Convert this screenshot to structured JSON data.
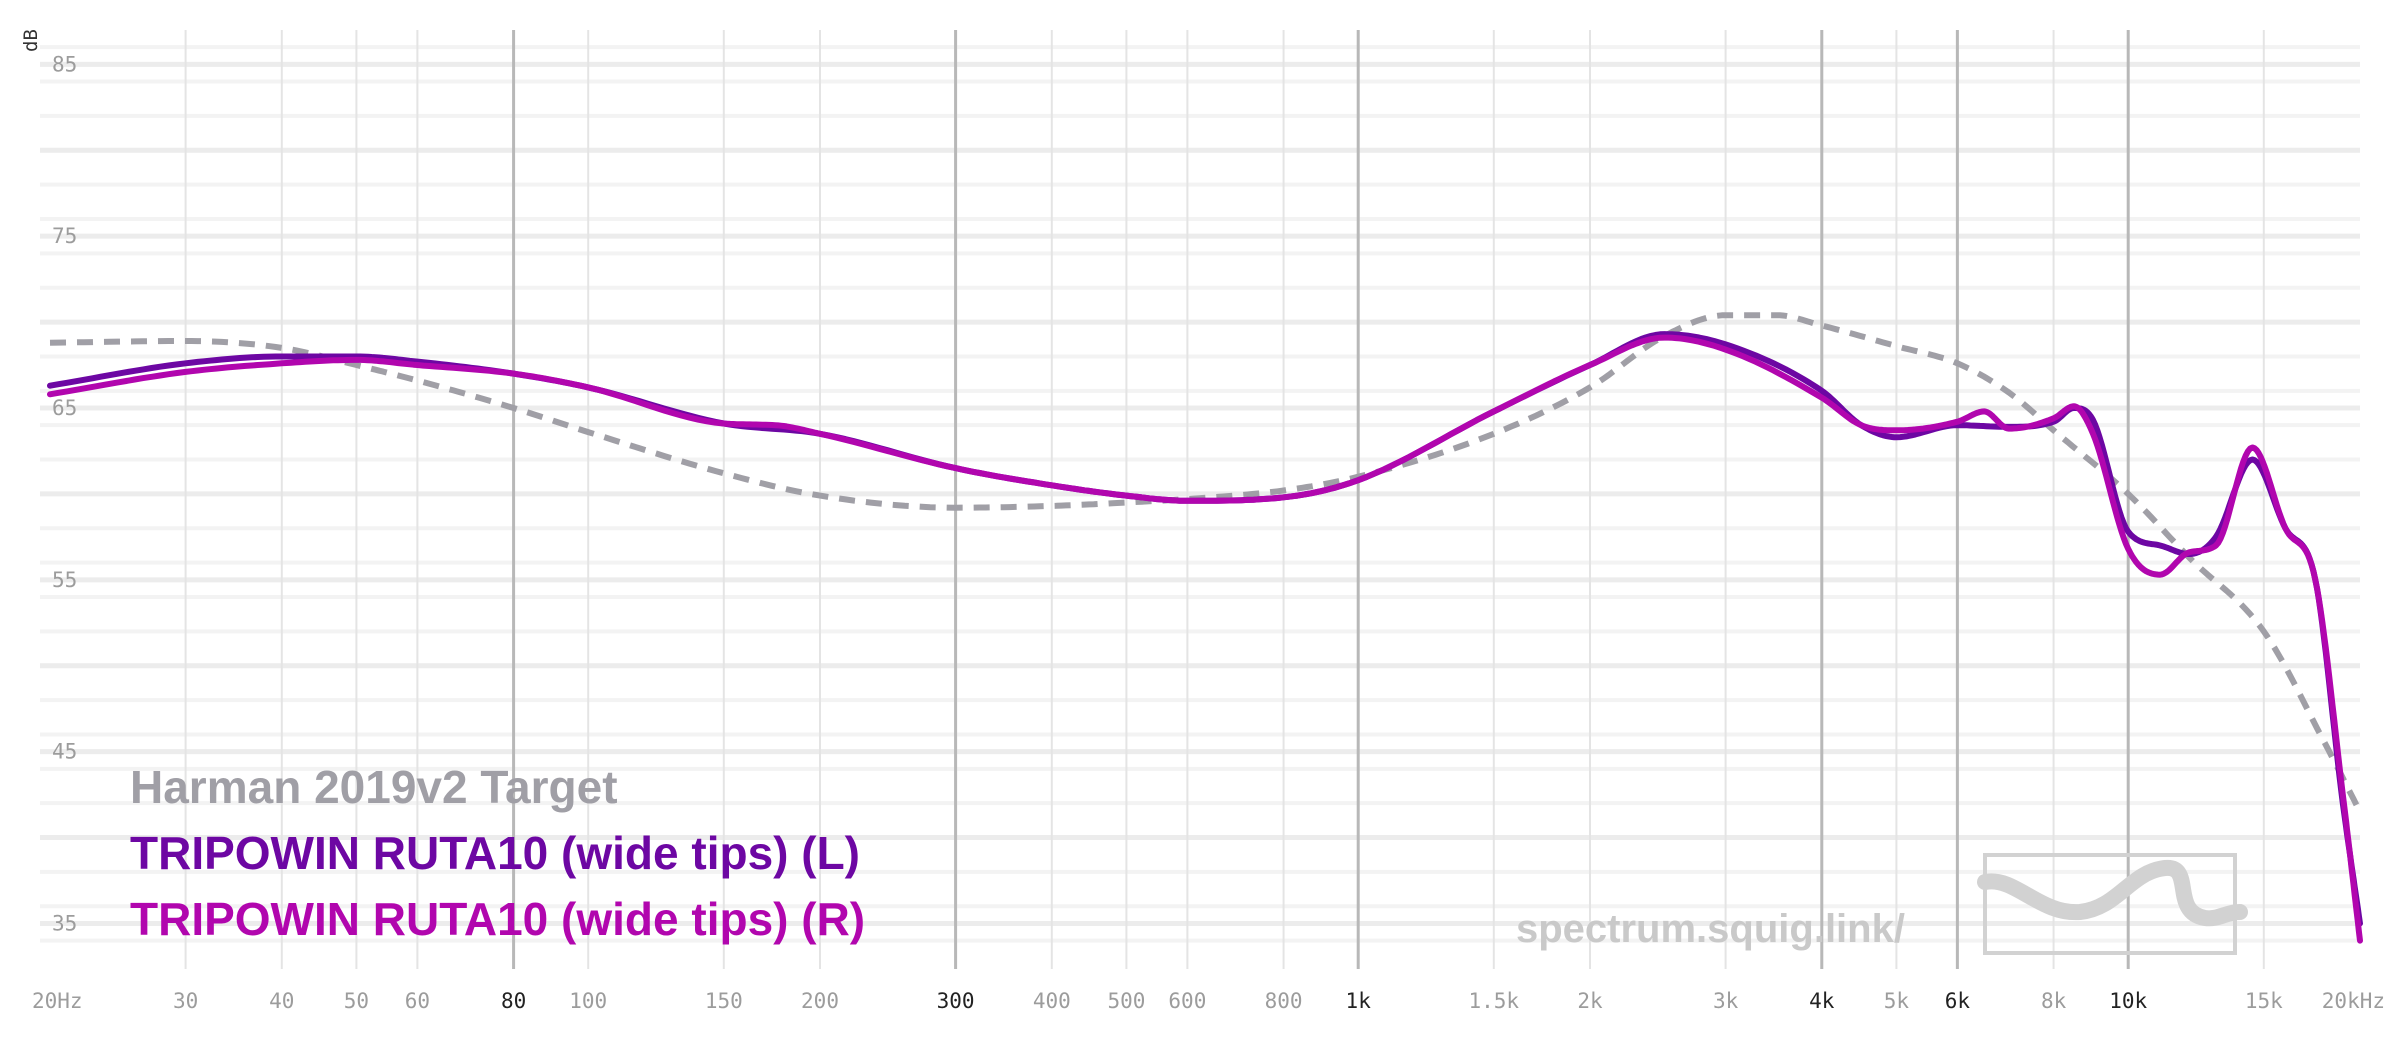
{
  "chart_data": {
    "type": "line",
    "ylabel": "dB",
    "y_ticks": [
      "85",
      "75",
      "65",
      "55",
      "45",
      "35"
    ],
    "x_ticks": [
      {
        "f": 20,
        "label": "20Hz",
        "major": false
      },
      {
        "f": 30,
        "label": "30",
        "major": false
      },
      {
        "f": 40,
        "label": "40",
        "major": false
      },
      {
        "f": 50,
        "label": "50",
        "major": false
      },
      {
        "f": 60,
        "label": "60",
        "major": false
      },
      {
        "f": 80,
        "label": "80",
        "major": true
      },
      {
        "f": 100,
        "label": "100",
        "major": false
      },
      {
        "f": 150,
        "label": "150",
        "major": false
      },
      {
        "f": 200,
        "label": "200",
        "major": false
      },
      {
        "f": 300,
        "label": "300",
        "major": true
      },
      {
        "f": 400,
        "label": "400",
        "major": false
      },
      {
        "f": 500,
        "label": "500",
        "major": false
      },
      {
        "f": 600,
        "label": "600",
        "major": false
      },
      {
        "f": 800,
        "label": "800",
        "major": false
      },
      {
        "f": 1000,
        "label": "1k",
        "major": true
      },
      {
        "f": 1500,
        "label": "1.5k",
        "major": false
      },
      {
        "f": 2000,
        "label": "2k",
        "major": false
      },
      {
        "f": 3000,
        "label": "3k",
        "major": false
      },
      {
        "f": 4000,
        "label": "4k",
        "major": true
      },
      {
        "f": 5000,
        "label": "5k",
        "major": false
      },
      {
        "f": 6000,
        "label": "6k",
        "major": true
      },
      {
        "f": 8000,
        "label": "8k",
        "major": false
      },
      {
        "f": 10000,
        "label": "10k",
        "major": true
      },
      {
        "f": 15000,
        "label": "15k",
        "major": false
      },
      {
        "f": 20000,
        "label": "20kHz",
        "major": false
      }
    ],
    "xlim": [
      20,
      20000
    ],
    "ylim": [
      32,
      87
    ],
    "x_scale": "log",
    "grid": true,
    "legend_position": "bottom-left",
    "series": [
      {
        "name": "Harman 2019v2 Target",
        "color": "#a09fa6",
        "dashed": true,
        "points": [
          [
            20,
            68.8
          ],
          [
            30,
            68.9
          ],
          [
            40,
            68.5
          ],
          [
            50,
            67.5
          ],
          [
            60,
            66.6
          ],
          [
            80,
            65.0
          ],
          [
            100,
            63.6
          ],
          [
            150,
            61.2
          ],
          [
            200,
            59.9
          ],
          [
            300,
            59.2
          ],
          [
            400,
            59.3
          ],
          [
            500,
            59.5
          ],
          [
            600,
            59.7
          ],
          [
            800,
            60.2
          ],
          [
            1000,
            61.0
          ],
          [
            1500,
            63.5
          ],
          [
            2000,
            66.2
          ],
          [
            2500,
            69.2
          ],
          [
            3000,
            70.4
          ],
          [
            3500,
            70.4
          ],
          [
            4000,
            69.8
          ],
          [
            5000,
            68.6
          ],
          [
            6000,
            67.6
          ],
          [
            7000,
            65.9
          ],
          [
            8000,
            63.7
          ],
          [
            10000,
            60.0
          ],
          [
            12000,
            56.3
          ],
          [
            15000,
            52.0
          ],
          [
            18000,
            45.5
          ],
          [
            20000,
            41.5
          ]
        ]
      },
      {
        "name": "TRIPOWIN RUTA10 (wide tips) (L)",
        "color": "#6d07a3",
        "dashed": false,
        "points": [
          [
            20,
            66.3
          ],
          [
            30,
            67.6
          ],
          [
            40,
            68.0
          ],
          [
            50,
            68.0
          ],
          [
            60,
            67.7
          ],
          [
            80,
            67.0
          ],
          [
            100,
            66.2
          ],
          [
            150,
            64.1
          ],
          [
            200,
            63.5
          ],
          [
            300,
            61.5
          ],
          [
            400,
            60.5
          ],
          [
            500,
            59.9
          ],
          [
            600,
            59.6
          ],
          [
            800,
            59.8
          ],
          [
            1000,
            60.8
          ],
          [
            1500,
            64.8
          ],
          [
            2000,
            67.5
          ],
          [
            2500,
            69.3
          ],
          [
            3000,
            68.7
          ],
          [
            4000,
            66.0
          ],
          [
            4500,
            64.0
          ],
          [
            5000,
            63.3
          ],
          [
            6000,
            64.0
          ],
          [
            7000,
            63.9
          ],
          [
            8000,
            64.2
          ],
          [
            8500,
            65.0
          ],
          [
            9000,
            64.3
          ],
          [
            10000,
            57.8
          ],
          [
            11000,
            57.0
          ],
          [
            12000,
            56.5
          ],
          [
            13000,
            57.5
          ],
          [
            14500,
            62.0
          ],
          [
            16000,
            58.0
          ],
          [
            17500,
            55.0
          ],
          [
            19000,
            42.0
          ],
          [
            20000,
            35.0
          ]
        ]
      },
      {
        "name": "TRIPOWIN RUTA10 (wide tips) (R)",
        "color": "#b106ae",
        "dashed": false,
        "points": [
          [
            20,
            65.8
          ],
          [
            30,
            67.1
          ],
          [
            40,
            67.6
          ],
          [
            50,
            67.8
          ],
          [
            60,
            67.5
          ],
          [
            80,
            67.0
          ],
          [
            100,
            66.2
          ],
          [
            150,
            64.1
          ],
          [
            175,
            64.0
          ],
          [
            200,
            63.5
          ],
          [
            300,
            61.5
          ],
          [
            400,
            60.5
          ],
          [
            500,
            59.9
          ],
          [
            600,
            59.6
          ],
          [
            800,
            59.8
          ],
          [
            1000,
            60.8
          ],
          [
            1500,
            64.8
          ],
          [
            2000,
            67.5
          ],
          [
            2500,
            69.1
          ],
          [
            3000,
            68.4
          ],
          [
            4000,
            65.6
          ],
          [
            4500,
            64.0
          ],
          [
            5000,
            63.7
          ],
          [
            6000,
            64.2
          ],
          [
            6500,
            64.8
          ],
          [
            7000,
            63.8
          ],
          [
            8000,
            64.4
          ],
          [
            8500,
            65.1
          ],
          [
            9000,
            63.5
          ],
          [
            10000,
            56.8
          ],
          [
            11000,
            55.3
          ],
          [
            12000,
            56.6
          ],
          [
            13000,
            57.0
          ],
          [
            14500,
            62.7
          ],
          [
            16000,
            58.0
          ],
          [
            17500,
            55.0
          ],
          [
            19000,
            42.5
          ],
          [
            20000,
            34.0
          ]
        ]
      }
    ],
    "watermark": "spectrum.squig.link/"
  }
}
